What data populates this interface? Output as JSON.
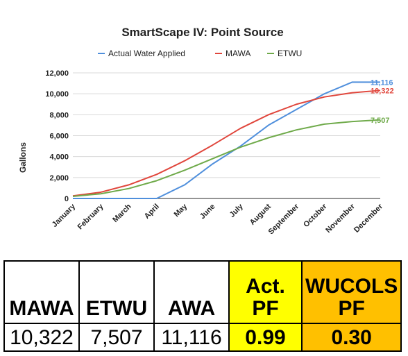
{
  "chart_data": {
    "type": "line",
    "title": "SmartScape IV: Point Source",
    "ylabel": "Gallons",
    "xlabel": "",
    "ylim": [
      0,
      12000
    ],
    "yticks": [
      "0",
      "2,000",
      "4,000",
      "6,000",
      "8,000",
      "10,000",
      "12,000"
    ],
    "ytick_values": [
      0,
      2000,
      4000,
      6000,
      8000,
      10000,
      12000
    ],
    "grid": true,
    "legend_position": "top",
    "categories": [
      "January",
      "February",
      "March",
      "April",
      "May",
      "June",
      "July",
      "August",
      "September",
      "October",
      "November",
      "December"
    ],
    "series": [
      {
        "name": "Actual Water Applied",
        "color": "#4f8fdc",
        "values": [
          0,
          0,
          0,
          0,
          1300,
          3300,
          5000,
          7000,
          8500,
          10000,
          11116,
          11116
        ],
        "end_label": "11,116"
      },
      {
        "name": "MAWA",
        "color": "#e0463c",
        "values": [
          250,
          600,
          1300,
          2300,
          3600,
          5100,
          6700,
          8000,
          9000,
          9700,
          10100,
          10322
        ],
        "end_label": "10,322"
      },
      {
        "name": "ETWU",
        "color": "#6faa4a",
        "values": [
          200,
          450,
          950,
          1700,
          2700,
          3800,
          4900,
          5800,
          6550,
          7100,
          7350,
          7507
        ],
        "end_label": "7,507"
      }
    ]
  },
  "summary_table": {
    "headers": [
      "MAWA",
      "ETWU",
      "AWA",
      "Act. PF",
      "WUCOLS PF"
    ],
    "values": [
      "10,322",
      "7,507",
      "11,116",
      "0.99",
      "0.30"
    ],
    "colors": {
      "act_pf": "#ffff00",
      "wucols_pf": "#ffc000",
      "default": "#ffffff"
    }
  }
}
